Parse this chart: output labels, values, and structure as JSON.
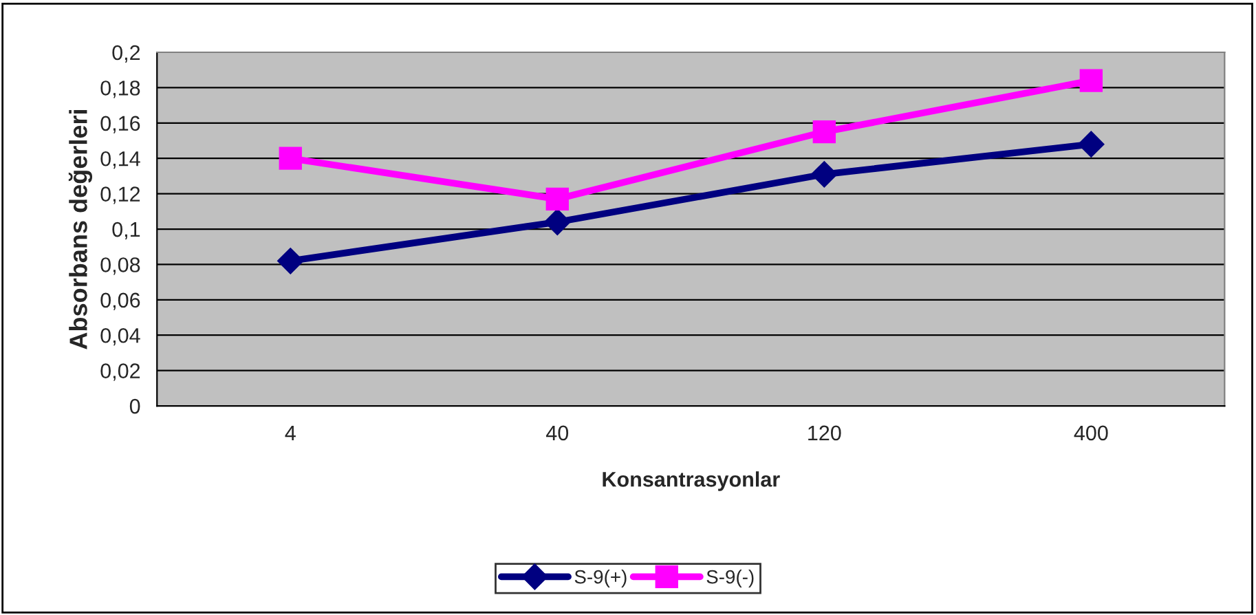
{
  "chart_data": {
    "type": "line",
    "xlabel": "Konsantrasyonlar",
    "ylabel": "Absorbans değerleri",
    "categories": [
      "4",
      "40",
      "120",
      "400"
    ],
    "series": [
      {
        "name": "S-9(+)",
        "color": "#000080",
        "marker": "diamond",
        "values": [
          0.082,
          0.104,
          0.131,
          0.148
        ]
      },
      {
        "name": "S-9(-)",
        "color": "#ff00ff",
        "marker": "square",
        "values": [
          0.14,
          0.117,
          0.155,
          0.184
        ]
      }
    ],
    "ylim": [
      0,
      0.2
    ],
    "yticks": [
      0,
      {
        "value": 0.02,
        "label": "0,02"
      },
      {
        "value": 0.04,
        "label": "0,04"
      },
      {
        "value": 0.06,
        "label": "0,06"
      },
      {
        "value": 0.08,
        "label": "0,08"
      },
      {
        "value": 0.1,
        "label": "0,1"
      },
      {
        "value": 0.12,
        "label": "0,12"
      },
      {
        "value": 0.14,
        "label": "0,14"
      },
      {
        "value": 0.16,
        "label": "0,16"
      },
      {
        "value": 0.18,
        "label": "0,18"
      },
      {
        "value": 0.2,
        "label": "0,2"
      }
    ],
    "grid": "y",
    "legend": "bottom",
    "line_style": "solid"
  }
}
